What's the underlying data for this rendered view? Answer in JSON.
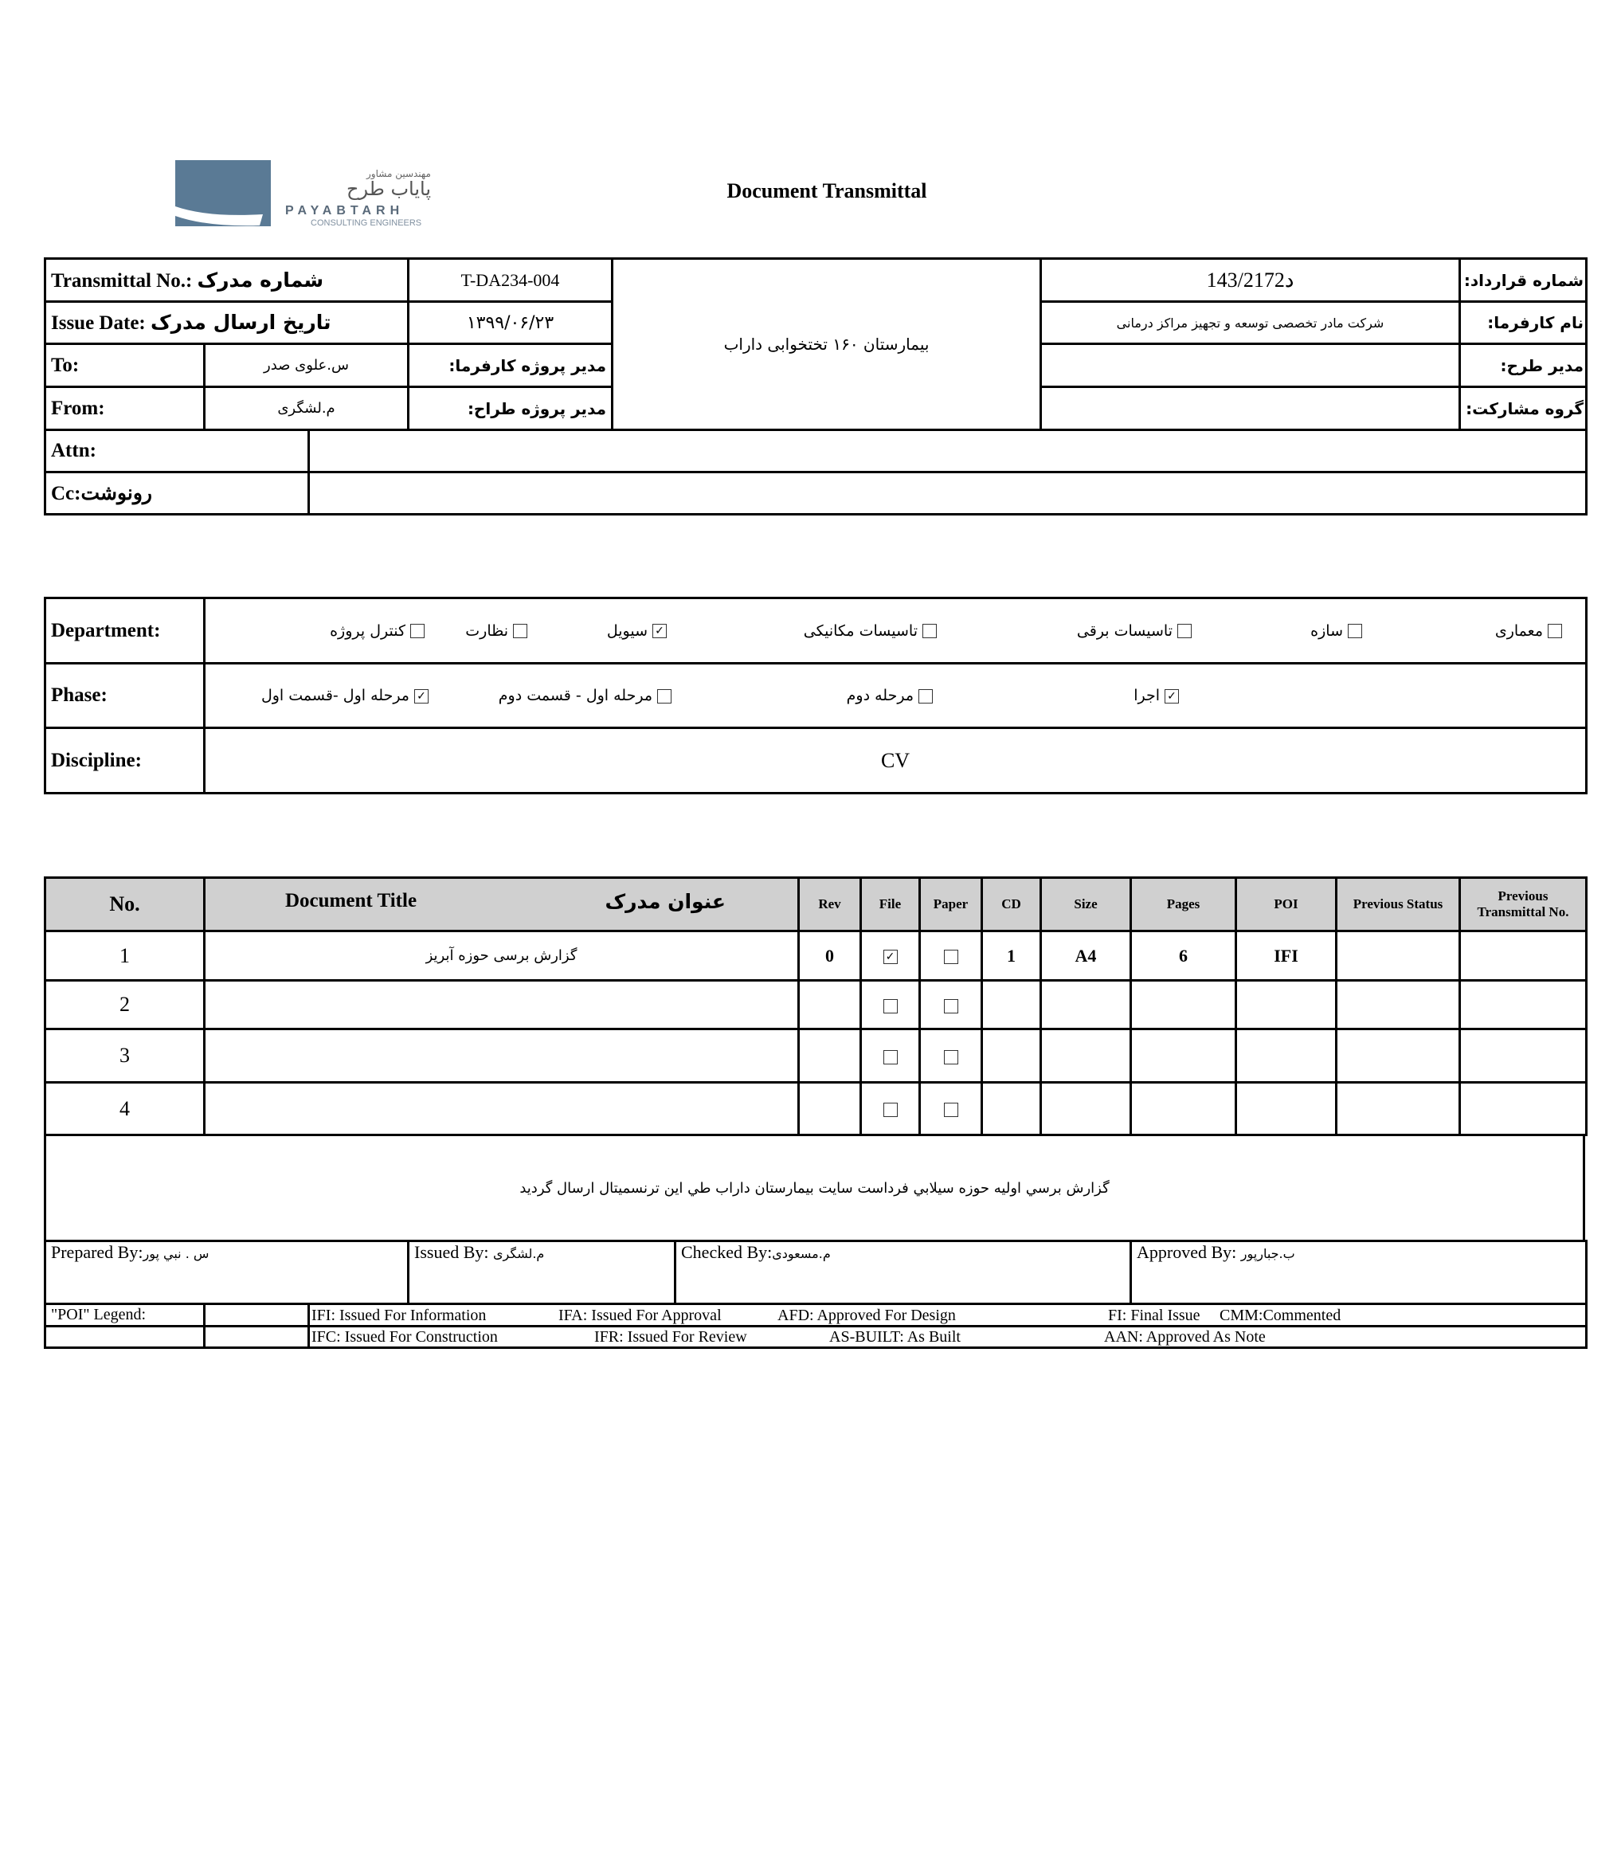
{
  "logo": {
    "company_fa_small": "مهندسین مشاور",
    "company_fa": "پایاب طرح",
    "company_en": "PAYABTARH",
    "tagline": "CONSULTING ENGINEERS",
    "color": "#5a7a95"
  },
  "title": "Document Transmittal",
  "header": {
    "transmittal_label": "Transmittal No.:",
    "transmittal_label_fa": "شماره مدرک",
    "transmittal_value": "T-DA234-004",
    "issue_label": "Issue Date:",
    "issue_label_fa": "تاریخ ارسال مدرک",
    "issue_value": "۱۳۹۹/۰۶/۲۳",
    "to_label": "To:",
    "to_value": "س.علوی صدر",
    "client_pm_label": "مدیر پروژه کارفرما:",
    "from_label": "From:",
    "from_value": "م.لشگری",
    "designer_pm_label": "مدیر پروژه طراح:",
    "project": "بیمارستان ۱۶۰ تختخوابی داراب",
    "contract_label": "شماره قرارداد:",
    "contract_value": "د143/2172",
    "client_label": "نام کارفرما:",
    "client_value": "شرکت مادر تخصصی توسعه و تجهیز مراکز درمانی",
    "plan_manager_label": "مدیر طرح:",
    "plan_manager_value": "",
    "partner_label": "گروه مشارکت:",
    "partner_value": "",
    "attn_label": "Attn:",
    "attn_value": "",
    "cc_label": "Cc:رونوشت",
    "cc_value": ""
  },
  "department": {
    "label": "Department:",
    "options": [
      {
        "label": "معماری",
        "checked": false
      },
      {
        "label": "سازه",
        "checked": false
      },
      {
        "label": "تاسیسات برقی",
        "checked": false
      },
      {
        "label": "تاسیسات مکانیکی",
        "checked": false
      },
      {
        "label": "سیویل",
        "checked": true
      },
      {
        "label": "نظارت",
        "checked": false
      },
      {
        "label": "کنترل پروژه",
        "checked": false
      }
    ]
  },
  "phase": {
    "label": "Phase:",
    "options": [
      {
        "label": "اجرا",
        "checked": true
      },
      {
        "label": "مرحله دوم",
        "checked": false
      },
      {
        "label": "مرحله اول - قسمت دوم",
        "checked": false
      },
      {
        "label": "مرحله اول -قسمت اول",
        "checked": true
      }
    ]
  },
  "discipline": {
    "label": "Discipline:",
    "value": "CV"
  },
  "documents": {
    "columns": [
      "No.",
      "Document Title",
      "عنوان مدرک",
      "Rev",
      "File",
      "Paper",
      "CD",
      "Size",
      "Pages",
      "POI",
      "Previous Status",
      "Previous Transmittal No."
    ],
    "rows": [
      {
        "no": "1",
        "title": "گزارش برسی حوزه آبریز",
        "rev": "0",
        "file": true,
        "paper": false,
        "cd": "1",
        "size": "A4",
        "pages": "6",
        "poi": "IFI",
        "prev_status": "",
        "prev_no": ""
      },
      {
        "no": "2",
        "title": "",
        "rev": "",
        "file": false,
        "paper": false,
        "cd": "",
        "size": "",
        "pages": "",
        "poi": "",
        "prev_status": "",
        "prev_no": ""
      },
      {
        "no": "3",
        "title": "",
        "rev": "",
        "file": false,
        "paper": false,
        "cd": "",
        "size": "",
        "pages": "",
        "poi": "",
        "prev_status": "",
        "prev_no": ""
      },
      {
        "no": "4",
        "title": "",
        "rev": "",
        "file": false,
        "paper": false,
        "cd": "",
        "size": "",
        "pages": "",
        "poi": "",
        "prev_status": "",
        "prev_no": ""
      }
    ]
  },
  "remarks": "گزارش برسي اوليه حوزه سيلابي فرداست سايت بيمارستان داراب طي اين ترنسميتال ارسال گرديد",
  "signatures": {
    "prepared": "Prepared By:",
    "prepared_name": "س . نبي پور",
    "issued": "Issued By:",
    "issued_name": "م.لشگری",
    "checked": "Checked By:",
    "checked_name": "م.مسعودی",
    "approved": "Approved By:",
    "approved_name": "ب.جبارپور"
  },
  "legend": {
    "label": "\"POI\" Legend:",
    "row1": [
      "IFI:  Issued For Information",
      "IFA: Issued For Approval",
      "AFD: Approved For Design",
      "FI: Final Issue",
      "CMM:Commented"
    ],
    "row2": [
      "IFC: Issued For Construction",
      "IFR: Issued For Review",
      "AS-BUILT: As Built",
      "AAN: Approved As Note"
    ]
  }
}
